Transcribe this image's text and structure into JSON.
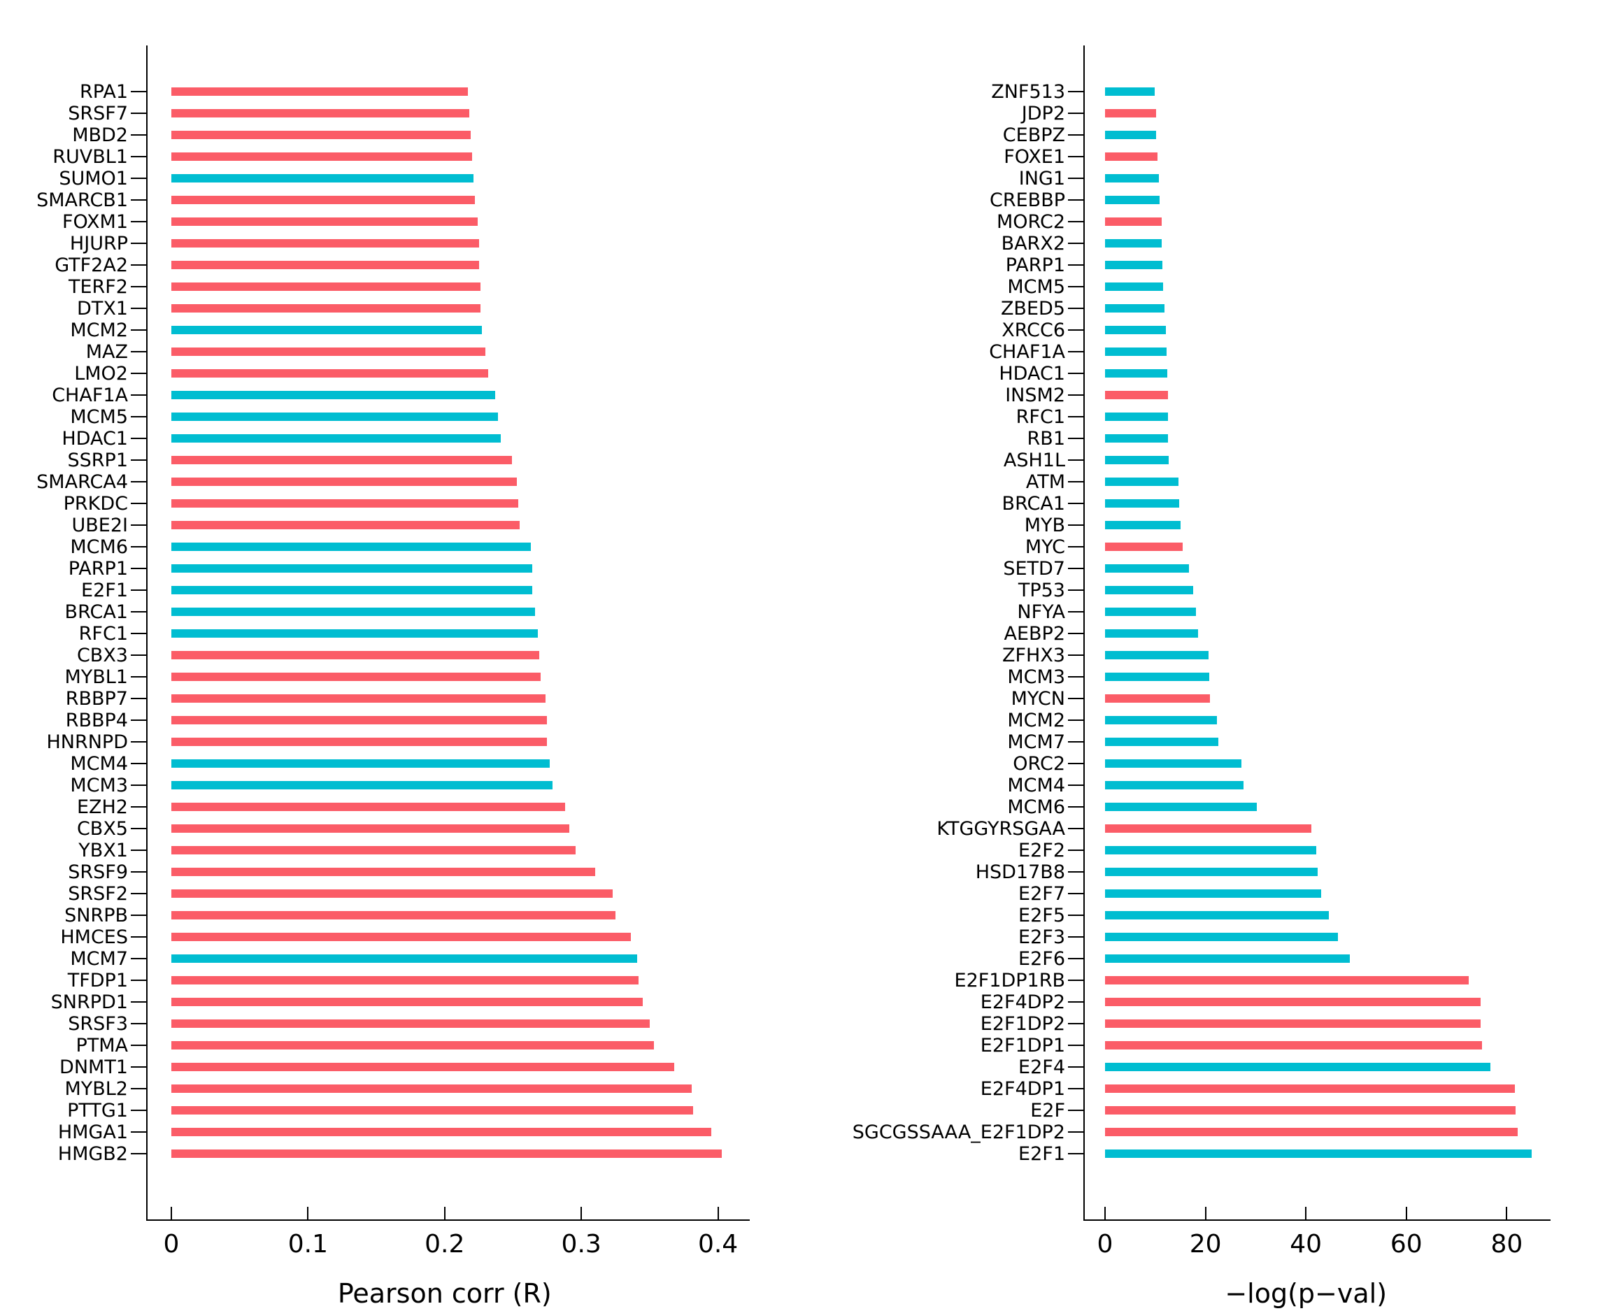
{
  "figure": {
    "background": "#ffffff"
  },
  "palette": {
    "coral": "#FB5C67",
    "cyan": "#00BDD1"
  },
  "chart_data": [
    {
      "type": "bar",
      "orientation": "horizontal",
      "title": "",
      "xlabel": "Pearson corr (R)",
      "ylabel": "",
      "xlim": [
        0,
        0.423
      ],
      "grid": false,
      "legend": "none",
      "xticks_labels": [
        "0",
        "0.1",
        "0.2",
        "0.3",
        "0.4"
      ],
      "xticks_values": [
        0,
        0.1,
        0.2,
        0.3,
        0.4
      ],
      "categories": [
        "RPA1",
        "SRSF7",
        "MBD2",
        "RUVBL1",
        "SUMO1",
        "SMARCB1",
        "FOXM1",
        "HJURP",
        "GTF2A2",
        "TERF2",
        "DTX1",
        "MCM2",
        "MAZ",
        "LMO2",
        "CHAF1A",
        "MCM5",
        "HDAC1",
        "SSRP1",
        "SMARCA4",
        "PRKDC",
        "UBE2I",
        "MCM6",
        "PARP1",
        "E2F1",
        "BRCA1",
        "RFC1",
        "CBX3",
        "MYBL1",
        "RBBP7",
        "RBBP4",
        "HNRNPD",
        "MCM4",
        "MCM3",
        "EZH2",
        "CBX5",
        "YBX1",
        "SRSF9",
        "SRSF2",
        "SNRPB",
        "HMCES",
        "MCM7",
        "TFDP1",
        "SNRPD1",
        "SRSF3",
        "PTMA",
        "DNMT1",
        "MYBL2",
        "PTTG1",
        "HMGA1",
        "HMGB2"
      ],
      "values": [
        0.217,
        0.218,
        0.219,
        0.22,
        0.221,
        0.222,
        0.224,
        0.225,
        0.225,
        0.226,
        0.226,
        0.227,
        0.23,
        0.232,
        0.237,
        0.239,
        0.241,
        0.249,
        0.253,
        0.254,
        0.255,
        0.263,
        0.264,
        0.264,
        0.266,
        0.268,
        0.269,
        0.27,
        0.274,
        0.275,
        0.275,
        0.277,
        0.279,
        0.288,
        0.291,
        0.296,
        0.31,
        0.323,
        0.325,
        0.336,
        0.341,
        0.342,
        0.345,
        0.35,
        0.353,
        0.368,
        0.381,
        0.382,
        0.395,
        0.403
      ],
      "colors": [
        "coral",
        "coral",
        "coral",
        "coral",
        "cyan",
        "coral",
        "coral",
        "coral",
        "coral",
        "coral",
        "coral",
        "cyan",
        "coral",
        "coral",
        "cyan",
        "cyan",
        "cyan",
        "coral",
        "coral",
        "coral",
        "coral",
        "cyan",
        "cyan",
        "cyan",
        "cyan",
        "cyan",
        "coral",
        "coral",
        "coral",
        "coral",
        "coral",
        "cyan",
        "cyan",
        "coral",
        "coral",
        "coral",
        "coral",
        "coral",
        "coral",
        "coral",
        "cyan",
        "coral",
        "coral",
        "coral",
        "coral",
        "coral",
        "coral",
        "coral",
        "coral",
        "coral"
      ]
    },
    {
      "type": "bar",
      "orientation": "horizontal",
      "title": "",
      "xlabel": "−log(p−val)",
      "ylabel": "",
      "xlim": [
        0,
        88.7
      ],
      "grid": false,
      "legend": "none",
      "xticks_labels": [
        "0",
        "20",
        "40",
        "60",
        "80"
      ],
      "xticks_values": [
        0,
        20,
        40,
        60,
        80
      ],
      "categories": [
        "ZNF513",
        "JDP2",
        "CEBPZ",
        "FOXE1",
        "ING1",
        "CREBBP",
        "MORC2",
        "BARX2",
        "PARP1",
        "MCM5",
        "ZBED5",
        "XRCC6",
        "CHAF1A",
        "HDAC1",
        "INSM2",
        "RFC1",
        "RB1",
        "ASH1L",
        "ATM",
        "BRCA1",
        "MYB",
        "MYC",
        "SETD7",
        "TP53",
        "NFYA",
        "AEBP2",
        "ZFHX3",
        "MCM3",
        "MYCN",
        "MCM2",
        "MCM7",
        "ORC2",
        "MCM4",
        "MCM6",
        "KTGGYRSGAA",
        "E2F2",
        "HSD17B8",
        "E2F7",
        "E2F5",
        "E2F3",
        "E2F6",
        "E2F1DP1RB",
        "E2F4DP2",
        "E2F1DP2",
        "E2F1DP1",
        "E2F4",
        "E2F4DP1",
        "E2F",
        "SGCGSSAAA_E2F1DP2",
        "E2F1"
      ],
      "values": [
        9.9,
        10.2,
        10.2,
        10.4,
        10.7,
        10.8,
        11.3,
        11.3,
        11.4,
        11.6,
        11.8,
        12.1,
        12.2,
        12.4,
        12.5,
        12.6,
        12.6,
        12.7,
        14.6,
        14.7,
        15.1,
        15.4,
        16.7,
        17.6,
        18.1,
        18.5,
        20.6,
        20.8,
        20.9,
        22.3,
        22.6,
        27.2,
        27.6,
        30.2,
        41.1,
        42.1,
        42.3,
        43.0,
        44.6,
        46.4,
        48.7,
        72.4,
        74.8,
        74.8,
        75.0,
        76.8,
        81.6,
        81.7,
        82.2,
        85.0
      ],
      "colors": [
        "cyan",
        "coral",
        "cyan",
        "coral",
        "cyan",
        "cyan",
        "coral",
        "cyan",
        "cyan",
        "cyan",
        "cyan",
        "cyan",
        "cyan",
        "cyan",
        "coral",
        "cyan",
        "cyan",
        "cyan",
        "cyan",
        "cyan",
        "cyan",
        "coral",
        "cyan",
        "cyan",
        "cyan",
        "cyan",
        "cyan",
        "cyan",
        "coral",
        "cyan",
        "cyan",
        "cyan",
        "cyan",
        "cyan",
        "coral",
        "cyan",
        "cyan",
        "cyan",
        "cyan",
        "cyan",
        "cyan",
        "coral",
        "coral",
        "coral",
        "coral",
        "cyan",
        "coral",
        "coral",
        "coral",
        "cyan"
      ]
    }
  ]
}
